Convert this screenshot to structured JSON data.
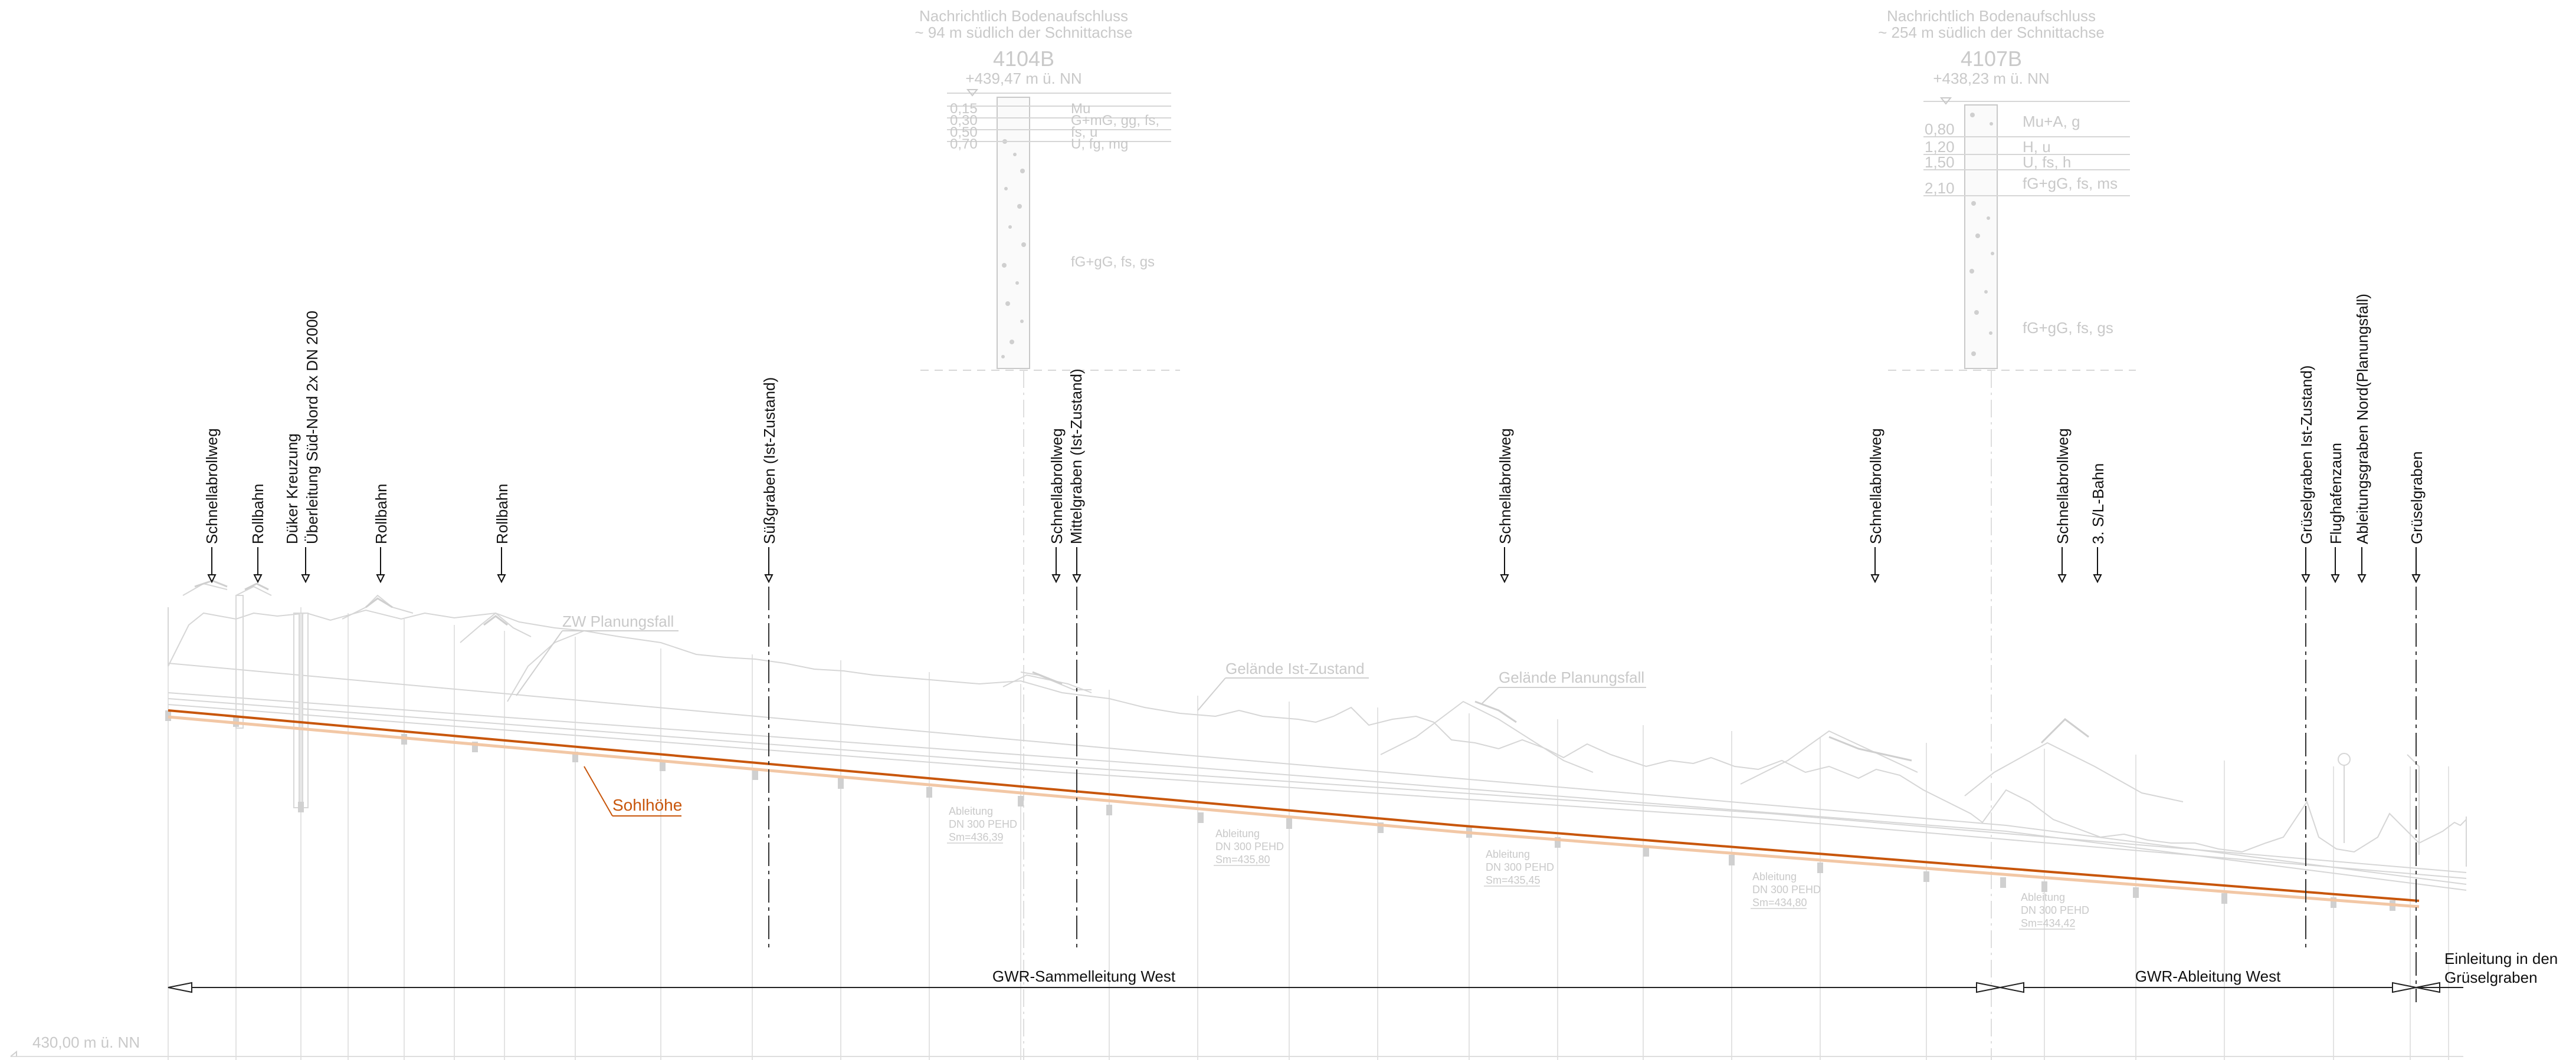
{
  "boreholes": [
    {
      "note_line1": "Nachrichtlich Bodenaufschluss",
      "note_line2": "~ 94 m südlich der Schnittachse",
      "id": "4104B",
      "elevation": "+439,47 m ü. NN",
      "layers": [
        {
          "depth": "0,15",
          "desc": "Mu"
        },
        {
          "depth": "0,30",
          "desc": "G+mG, gg, fs,"
        },
        {
          "depth": "0,50",
          "desc": "fs, u"
        },
        {
          "depth": "0,70",
          "desc": "U, fg, mg"
        }
      ],
      "bottom_desc": "fG+gG, fs, gs"
    },
    {
      "note_line1": "Nachrichtlich Bodenaufschluss",
      "note_line2": "~ 254 m südlich der Schnittachse",
      "id": "4107B",
      "elevation": "+438,23 m ü. NN",
      "layers": [
        {
          "depth": "0,80",
          "desc": "Mu+A, g"
        },
        {
          "depth": "1,20",
          "desc": "H, u"
        },
        {
          "depth": "1,50",
          "desc": "U, fs, h"
        },
        {
          "depth": "2,10",
          "desc": "fG+gG, fs, ms"
        }
      ],
      "bottom_desc": "fG+gG, fs, gs"
    }
  ],
  "crossings": [
    {
      "l1": "Schnellabrollweg",
      "l2": ""
    },
    {
      "l1": "Rollbahn",
      "l2": ""
    },
    {
      "l1": "Düker Kreuzung",
      "l2": "Überleitung Süd-Nord 2x DN 2000"
    },
    {
      "l1": "Rollbahn",
      "l2": ""
    },
    {
      "l1": "Rollbahn",
      "l2": ""
    },
    {
      "l1": "Süßgraben (Ist-Zustand)",
      "l2": ""
    },
    {
      "l1": "Schnellabrollweg",
      "l2": "Mittelgraben (Ist-Zustand)"
    },
    {
      "l1": "Schnellabrollweg",
      "l2": ""
    },
    {
      "l1": "Schnellabrollweg",
      "l2": ""
    },
    {
      "l1": "Schnellabrollweg",
      "l2": ""
    },
    {
      "l1": "3. S/L-Bahn",
      "l2": ""
    },
    {
      "l1": "Grüselgraben Ist-Zustand)",
      "l2": ""
    },
    {
      "l1": "Flughafenzaun",
      "l2": ""
    },
    {
      "l1": "Ableitungsgraben Nord(Planungsfall)",
      "l2": ""
    },
    {
      "l1": "Grüselgraben",
      "l2": ""
    }
  ],
  "profile_labels": {
    "zw": "ZW Planungsfall",
    "ist": "Gelände Ist-Zustand",
    "plan": "Gelände Planungsfall",
    "sohl": "Sohlhöhe"
  },
  "pipe_notes": [
    {
      "l1": "Ableitung",
      "l2": "DN 300 PEHD",
      "l3": "Sm=436,39"
    },
    {
      "l1": "Ableitung",
      "l2": "DN 300 PEHD",
      "l3": "Sm=435,80"
    },
    {
      "l1": "Ableitung",
      "l2": "DN 300 PEHD",
      "l3": "Sm=435,45"
    },
    {
      "l1": "Ableitung",
      "l2": "DN 300 PEHD",
      "l3": "Sm=434,80"
    },
    {
      "l1": "Ableitung",
      "l2": "DN 300 PEHD",
      "l3": "Sm=434,42"
    }
  ],
  "sections": {
    "west": "GWR-Sammelleitung West",
    "ableitung": "GWR-Ableitung West",
    "einleitung1": "Einleitung in den",
    "einleitung2": "Grüselgraben"
  },
  "datum": "430,00 m ü. NN",
  "colors": {
    "sohl": "#c8560b",
    "faint": "#c9c9c9",
    "dark": "#111111"
  }
}
